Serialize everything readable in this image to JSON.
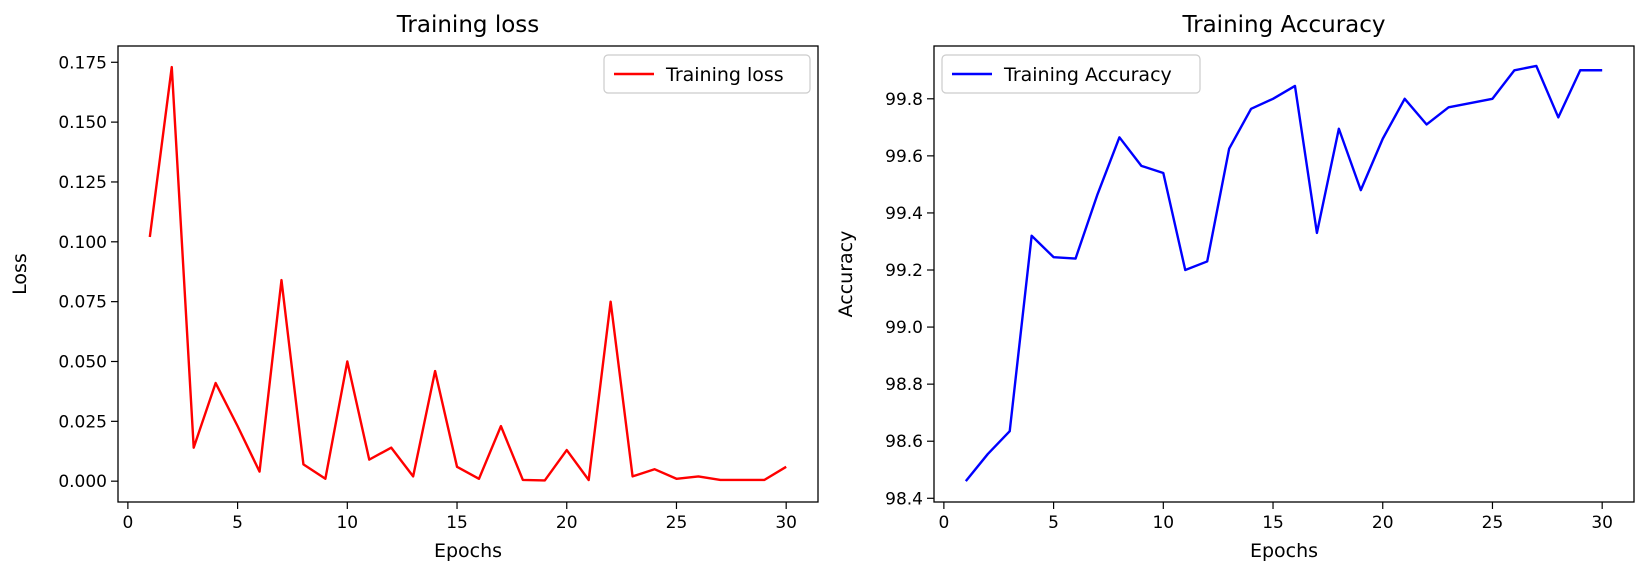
{
  "chart_data": [
    {
      "type": "line",
      "title": "Training loss",
      "xlabel": "Epochs",
      "ylabel": "Loss",
      "xlim": [
        -0.45,
        31.45
      ],
      "ylim": [
        -0.0087,
        0.1818
      ],
      "xticks": [
        0,
        5,
        10,
        15,
        20,
        25,
        30
      ],
      "xtick_labels": [
        "0",
        "5",
        "10",
        "15",
        "20",
        "25",
        "30"
      ],
      "yticks": [
        0.0,
        0.025,
        0.05,
        0.075,
        0.1,
        0.125,
        0.15,
        0.175
      ],
      "ytick_labels": [
        "0.000",
        "0.025",
        "0.050",
        "0.075",
        "0.100",
        "0.125",
        "0.150",
        "0.175"
      ],
      "grid": false,
      "legend": "top-right",
      "x": [
        1,
        2,
        3,
        4,
        5,
        6,
        7,
        8,
        9,
        10,
        11,
        12,
        13,
        14,
        15,
        16,
        17,
        18,
        19,
        20,
        21,
        22,
        23,
        24,
        25,
        26,
        27,
        28,
        29,
        30
      ],
      "series": [
        {
          "name": "Training loss",
          "color": "#ff0000",
          "values": [
            0.102,
            0.173,
            0.014,
            0.041,
            0.023,
            0.004,
            0.084,
            0.007,
            0.001,
            0.05,
            0.009,
            0.014,
            0.002,
            0.046,
            0.006,
            0.001,
            0.023,
            0.0005,
            0.0003,
            0.013,
            0.0005,
            0.075,
            0.002,
            0.005,
            0.001,
            0.002,
            0.0005,
            0.0005,
            0.0005,
            0.006
          ]
        }
      ]
    },
    {
      "type": "line",
      "title": "Training Accuracy",
      "xlabel": "Epochs",
      "ylabel": "Accuracy",
      "xlim": [
        -0.45,
        31.45
      ],
      "ylim": [
        98.387,
        99.985
      ],
      "xticks": [
        0,
        5,
        10,
        15,
        20,
        25,
        30
      ],
      "xtick_labels": [
        "0",
        "5",
        "10",
        "15",
        "20",
        "25",
        "30"
      ],
      "yticks": [
        98.4,
        98.6,
        98.8,
        99.0,
        99.2,
        99.4,
        99.6,
        99.8
      ],
      "ytick_labels": [
        "98.4",
        "98.6",
        "98.8",
        "99.0",
        "99.2",
        "99.4",
        "99.6",
        "99.8"
      ],
      "grid": false,
      "legend": "top-left",
      "x": [
        1,
        2,
        3,
        4,
        5,
        6,
        7,
        8,
        9,
        10,
        11,
        12,
        13,
        14,
        15,
        16,
        17,
        18,
        19,
        20,
        21,
        22,
        23,
        24,
        25,
        26,
        27,
        28,
        29,
        30
      ],
      "series": [
        {
          "name": "Training Accuracy",
          "color": "#0000ff",
          "values": [
            98.46,
            98.555,
            98.635,
            99.32,
            99.245,
            99.24,
            99.465,
            99.665,
            99.565,
            99.54,
            99.2,
            99.23,
            99.625,
            99.765,
            99.8,
            99.845,
            99.33,
            99.695,
            99.48,
            99.66,
            99.8,
            99.71,
            99.77,
            99.785,
            99.8,
            99.9,
            99.915,
            99.735,
            99.9,
            99.9
          ]
        }
      ]
    }
  ]
}
